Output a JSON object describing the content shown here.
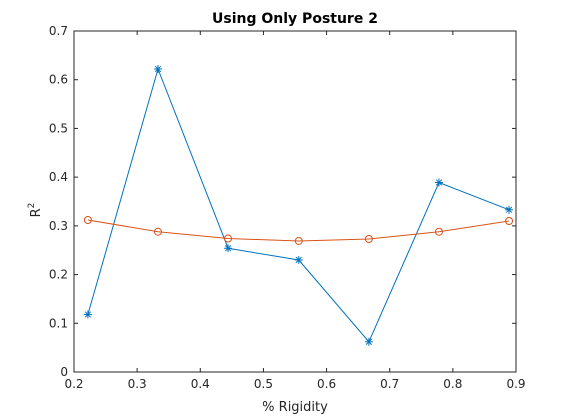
{
  "chart_data": {
    "type": "line",
    "title": "Using Only Posture 2",
    "xlabel": "% Rigidity",
    "ylabel": "R",
    "ylabel_superscript": "2",
    "xlim": [
      0.2,
      0.9
    ],
    "ylim": [
      0,
      0.7
    ],
    "xticks": [
      0.2,
      0.3,
      0.4,
      0.5,
      0.6,
      0.7,
      0.8,
      0.9
    ],
    "yticks": [
      0,
      0.1,
      0.2,
      0.3,
      0.4,
      0.5,
      0.6,
      0.7
    ],
    "xtick_labels": [
      "0.2",
      "0.3",
      "0.4",
      "0.5",
      "0.6",
      "0.7",
      "0.8",
      "0.9"
    ],
    "ytick_labels": [
      "0",
      "0.1",
      "0.2",
      "0.3",
      "0.4",
      "0.5",
      "0.6",
      "0.7"
    ],
    "grid": false,
    "series": [
      {
        "marker": "asterisk",
        "color": "#0072BD",
        "x": [
          0.222,
          0.333,
          0.444,
          0.556,
          0.667,
          0.778,
          0.889
        ],
        "y": [
          0.118,
          0.622,
          0.254,
          0.23,
          0.062,
          0.389,
          0.333
        ]
      },
      {
        "marker": "circle",
        "color": "#D95319",
        "x": [
          0.222,
          0.333,
          0.444,
          0.556,
          0.667,
          0.778,
          0.889
        ],
        "y": [
          0.312,
          0.288,
          0.274,
          0.269,
          0.273,
          0.288,
          0.31
        ]
      }
    ]
  }
}
